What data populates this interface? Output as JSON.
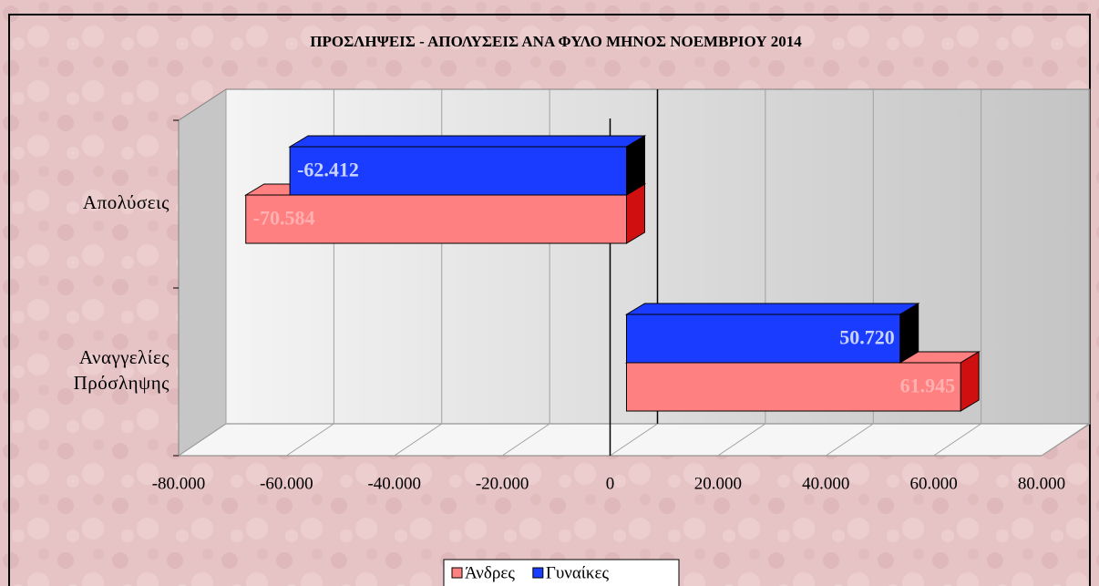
{
  "chart_data": {
    "type": "bar",
    "orientation": "horizontal",
    "title": "ΠΡΟΣΛΗΨΕΙΣ - ΑΠΟΛΥΣΕΙΣ ΑΝΑ ΦΥΛΟ ΜΗΝΟΣ ΝΟΕΜΒΡΙΟΥ 2014",
    "categories": [
      "Αναγγελίες\nΠρόσληψης",
      "Απολύσεις"
    ],
    "series": [
      {
        "name": "Άνδρες",
        "color": "#ff8080",
        "values": [
          61945,
          -70584
        ],
        "value_labels": [
          "61.945",
          "-70.584"
        ]
      },
      {
        "name": "Γυναίκες",
        "color": "#1a3cff",
        "values": [
          50720,
          -62412
        ],
        "value_labels": [
          "50.720",
          "-62.412"
        ]
      }
    ],
    "xlim": [
      -80000,
      80000
    ],
    "xticks": [
      {
        "value": -80000,
        "label": "-80.000"
      },
      {
        "value": -60000,
        "label": "-60.000"
      },
      {
        "value": -40000,
        "label": "-40.000"
      },
      {
        "value": -20000,
        "label": "-20.000"
      },
      0,
      {
        "value": 20000,
        "label": "20.000"
      },
      {
        "value": 40000,
        "label": "40.000"
      },
      {
        "value": 60000,
        "label": "60.000"
      },
      {
        "value": 80000,
        "label": "80.000"
      }
    ],
    "grid": true,
    "legend": "bottom"
  }
}
